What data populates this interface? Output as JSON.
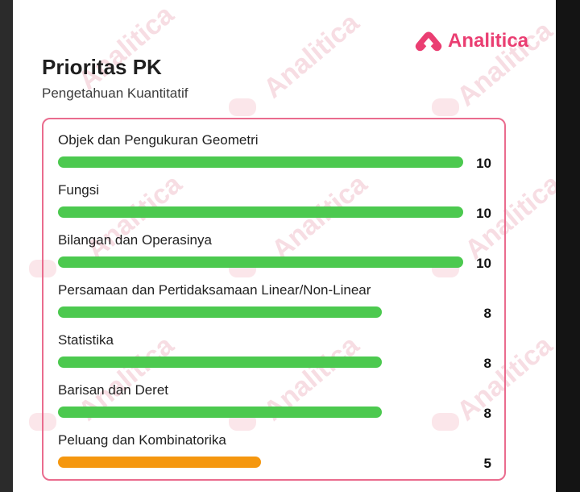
{
  "brand": {
    "name": "Analitica",
    "color": "#ea3e72"
  },
  "header": {
    "title": "Prioritas PK",
    "subtitle": "Pengetahuan Kuantitatif"
  },
  "scale_max": 10,
  "colors": {
    "high": "#4cc94f",
    "low": "#f5970f"
  },
  "items": [
    {
      "label": "Objek dan Pengukuran Geometri",
      "value": 10
    },
    {
      "label": "Fungsi",
      "value": 10
    },
    {
      "label": "Bilangan dan Operasinya",
      "value": 10
    },
    {
      "label": "Persamaan dan Pertidaksamaan Linear/Non-Linear",
      "value": 8
    },
    {
      "label": "Statistika",
      "value": 8
    },
    {
      "label": "Barisan dan Deret",
      "value": 8
    },
    {
      "label": "Peluang dan Kombinatorika",
      "value": 5
    }
  ]
}
